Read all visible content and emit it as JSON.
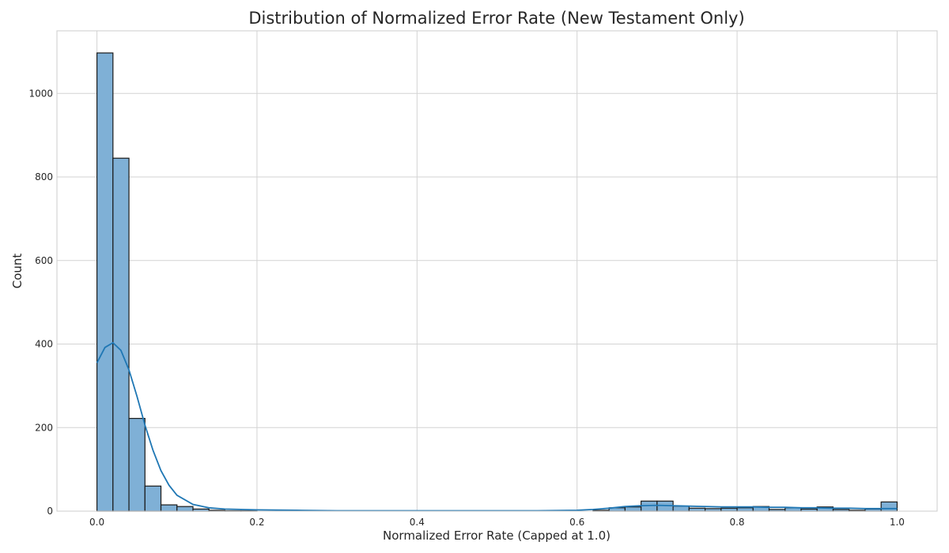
{
  "chart_data": {
    "type": "bar",
    "title": "Distribution of Normalized Error Rate (New Testament Only)",
    "xlabel": "Normalized Error Rate (Capped at 1.0)",
    "ylabel": "Count",
    "xlim": [
      -0.05,
      1.05
    ],
    "ylim": [
      0,
      1150
    ],
    "grid": true,
    "x_ticks": [
      "0.0",
      "0.2",
      "0.4",
      "0.6",
      "0.8",
      "1.0"
    ],
    "y_ticks": [
      "0",
      "200",
      "400",
      "600",
      "800",
      "1000"
    ],
    "bin_width": 0.02,
    "bins_start": [
      0.0,
      0.02,
      0.04,
      0.06,
      0.08,
      0.1,
      0.12,
      0.14,
      0.16,
      0.18,
      0.62,
      0.64,
      0.66,
      0.68,
      0.7,
      0.72,
      0.74,
      0.76,
      0.78,
      0.8,
      0.82,
      0.84,
      0.86,
      0.88,
      0.9,
      0.92,
      0.94,
      0.96,
      0.98
    ],
    "counts": [
      1097,
      845,
      222,
      60,
      15,
      11,
      5,
      2,
      1,
      1,
      2,
      8,
      10,
      24,
      24,
      12,
      7,
      6,
      7,
      8,
      11,
      4,
      8,
      5,
      10,
      4,
      2,
      5,
      22
    ],
    "kde": {
      "x": [
        0.0,
        0.01,
        0.02,
        0.03,
        0.04,
        0.05,
        0.06,
        0.07,
        0.08,
        0.09,
        0.1,
        0.12,
        0.14,
        0.16,
        0.18,
        0.2,
        0.25,
        0.3,
        0.4,
        0.5,
        0.55,
        0.6,
        0.62,
        0.64,
        0.66,
        0.68,
        0.7,
        0.72,
        0.74,
        0.76,
        0.78,
        0.8,
        0.82,
        0.84,
        0.86,
        0.88,
        0.9,
        0.92,
        0.94,
        0.96,
        0.98,
        1.0
      ],
      "y": [
        355,
        392,
        403,
        385,
        338,
        275,
        206,
        146,
        97,
        62,
        38,
        16,
        8,
        5,
        4,
        3,
        2,
        1,
        1,
        1,
        1,
        2,
        4,
        7,
        11,
        13,
        14,
        13,
        12,
        11,
        10,
        10,
        10,
        9,
        9,
        8,
        8,
        7,
        7,
        6,
        6,
        6
      ]
    }
  }
}
